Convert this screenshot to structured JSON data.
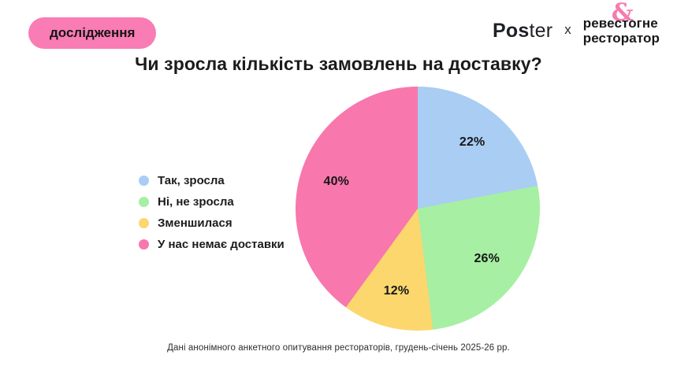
{
  "badge": {
    "label": "дослідження"
  },
  "header": {
    "poster_logo": {
      "bold": "Pos",
      "light": "ter"
    },
    "separator": "x",
    "partner_logo": {
      "line1_part1": "реве",
      "ampersand": "&",
      "line1_part2": "стогне",
      "line2": "ресторатор"
    }
  },
  "title": "Чи зросла кількість замовлень на доставку?",
  "footer": "Дані анонімного анкетного опитування рестораторів, грудень-січень 2025-26 рр.",
  "colors": {
    "accent_pink": "#F87AAF",
    "badge_bg": "#F97CB4",
    "text_dark": "#1c1c1c"
  },
  "chart_data": {
    "type": "pie",
    "title": "Чи зросла кількість замовлень на доставку?",
    "legend": [
      "Так, зросла",
      "Ні, не зросла",
      "Зменшилася",
      "У нас немає доставки"
    ],
    "values": [
      22,
      26,
      12,
      40
    ],
    "labels": [
      "22%",
      "26%",
      "12%",
      "40%"
    ],
    "colors": [
      "#A9CDF3",
      "#A6EFA3",
      "#FBD76E",
      "#F877AD"
    ],
    "start_angle_deg": 0,
    "direction": "clockwise",
    "legend_position": "left",
    "label_radius_ratio": 0.7
  }
}
